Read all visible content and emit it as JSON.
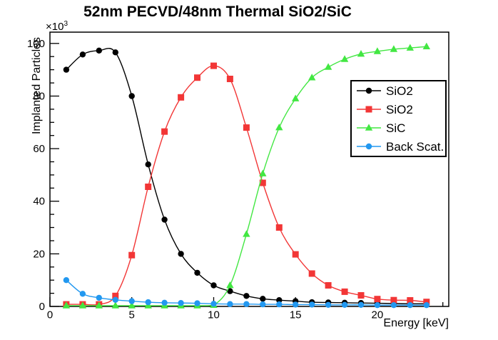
{
  "chart_data": {
    "type": "line",
    "title": "52nm PECVD/48nm Thermal SiO2/SiC",
    "xlabel": "Energy [keV]",
    "ylabel": "Implanted Particles",
    "y_unit_multiplier": {
      "base": "×10",
      "exponent": "3"
    },
    "grid": false,
    "legend_position": "middle-right",
    "xlim": [
      0,
      24.36
    ],
    "ylim": [
      0,
      104.3
    ],
    "x_major_ticks": [
      0,
      5,
      10,
      15,
      20
    ],
    "x_minor_tick_step": 1,
    "y_major_ticks": [
      0,
      20,
      40,
      60,
      80,
      100
    ],
    "y_minor_tick_step": 5,
    "x": [
      1,
      2,
      3,
      4,
      5,
      6,
      7,
      8,
      9,
      10,
      11,
      12,
      13,
      14,
      15,
      16,
      17,
      18,
      19,
      20,
      21,
      22,
      23
    ],
    "series": [
      {
        "name": "SiO2",
        "marker": "circle",
        "color": "#000000",
        "values": [
          90,
          95.8,
          97.3,
          96.6,
          80,
          54,
          33,
          20,
          12.8,
          8,
          5.8,
          4,
          2.9,
          2.4,
          2,
          1.6,
          1.5,
          1.4,
          1.3,
          1.2,
          1.1,
          1,
          1
        ]
      },
      {
        "name": "SiO2",
        "marker": "square",
        "color": "#f23636",
        "values": [
          0.8,
          0.8,
          0.8,
          4,
          19.5,
          45.5,
          66.5,
          79.5,
          87,
          91.5,
          86.5,
          68,
          47,
          30,
          19.8,
          12.5,
          8,
          5.6,
          4.2,
          2.8,
          2.4,
          2.3,
          1.7
        ]
      },
      {
        "name": "SiC",
        "marker": "triangle-up",
        "color": "#42e742",
        "values": [
          0.3,
          0.3,
          0.3,
          0.3,
          0.3,
          0.3,
          0.3,
          0.3,
          0.3,
          0.5,
          8,
          27.5,
          50.5,
          68,
          79,
          87,
          91,
          94,
          96,
          97,
          97.8,
          98.3,
          98.8
        ]
      },
      {
        "name": "Back Scat.",
        "marker": "circle",
        "color": "#2298f0",
        "values": [
          10,
          4.8,
          3.3,
          2.5,
          2,
          1.6,
          1.4,
          1.3,
          1.2,
          1,
          0.9,
          0.9,
          0.8,
          0.8,
          0.7,
          0.7,
          0.6,
          0.6,
          0.6,
          0.5,
          0.5,
          0.5,
          0.5
        ]
      }
    ]
  }
}
